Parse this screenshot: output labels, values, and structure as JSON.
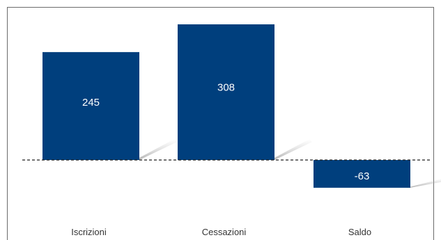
{
  "chart_data": {
    "type": "bar",
    "categories": [
      "Iscrizioni",
      "Cessazioni",
      "Saldo"
    ],
    "values": [
      245,
      308,
      -63
    ],
    "value_labels": [
      "245",
      "308",
      "-63"
    ],
    "ylim": [
      -80,
      340
    ],
    "reference_line": 0,
    "grid": false,
    "legend": "none",
    "colors": {
      "bar": "#003f7d",
      "value_text": "#ffffff",
      "category_text": "#333333",
      "zero_line": "#222222"
    }
  }
}
